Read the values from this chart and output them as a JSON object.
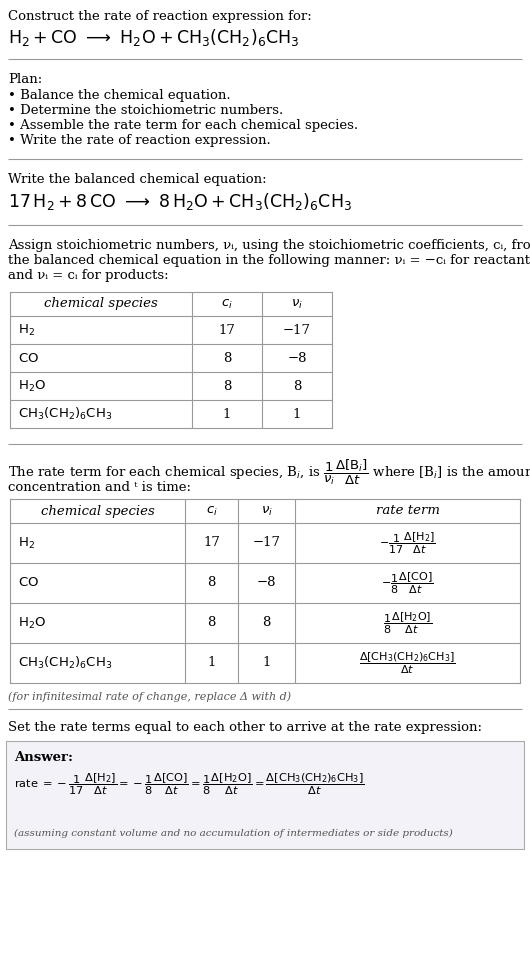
{
  "bg_color": "#ffffff",
  "text_color": "#000000",
  "title_line1": "Construct the rate of reaction expression for:",
  "plan_header": "Plan:",
  "plan_items": [
    "• Balance the chemical equation.",
    "• Determine the stoichiometric numbers.",
    "• Assemble the rate term for each chemical species.",
    "• Write the rate of reaction expression."
  ],
  "balanced_header": "Write the balanced chemical equation:",
  "stoich_intro_lines": [
    "Assign stoichiometric numbers, νᵢ, using the stoichiometric coefficients, cᵢ, from",
    "the balanced chemical equation in the following manner: νᵢ = −cᵢ for reactants",
    "and νᵢ = cᵢ for products:"
  ],
  "table1_rows": [
    [
      "H_2",
      "17",
      "−17"
    ],
    [
      "CO",
      "8",
      "−8"
    ],
    [
      "H_2O",
      "8",
      "8"
    ],
    [
      "CH_3(CH_2)_6CH_3",
      "1",
      "1"
    ]
  ],
  "table2_rows": [
    [
      "H_2",
      "17",
      "−17"
    ],
    [
      "CO",
      "8",
      "−8"
    ],
    [
      "H_2O",
      "8",
      "8"
    ],
    [
      "CH_3(CH_2)_6CH_3",
      "1",
      "1"
    ]
  ],
  "infinitesimal_note": "(for infinitesimal rate of change, replace Δ with d)",
  "answer_header": "Set the rate terms equal to each other to arrive at the rate expression:",
  "answer_label": "Answer:",
  "answer_note": "(assuming constant volume and no accumulation of intermediates or side products)"
}
